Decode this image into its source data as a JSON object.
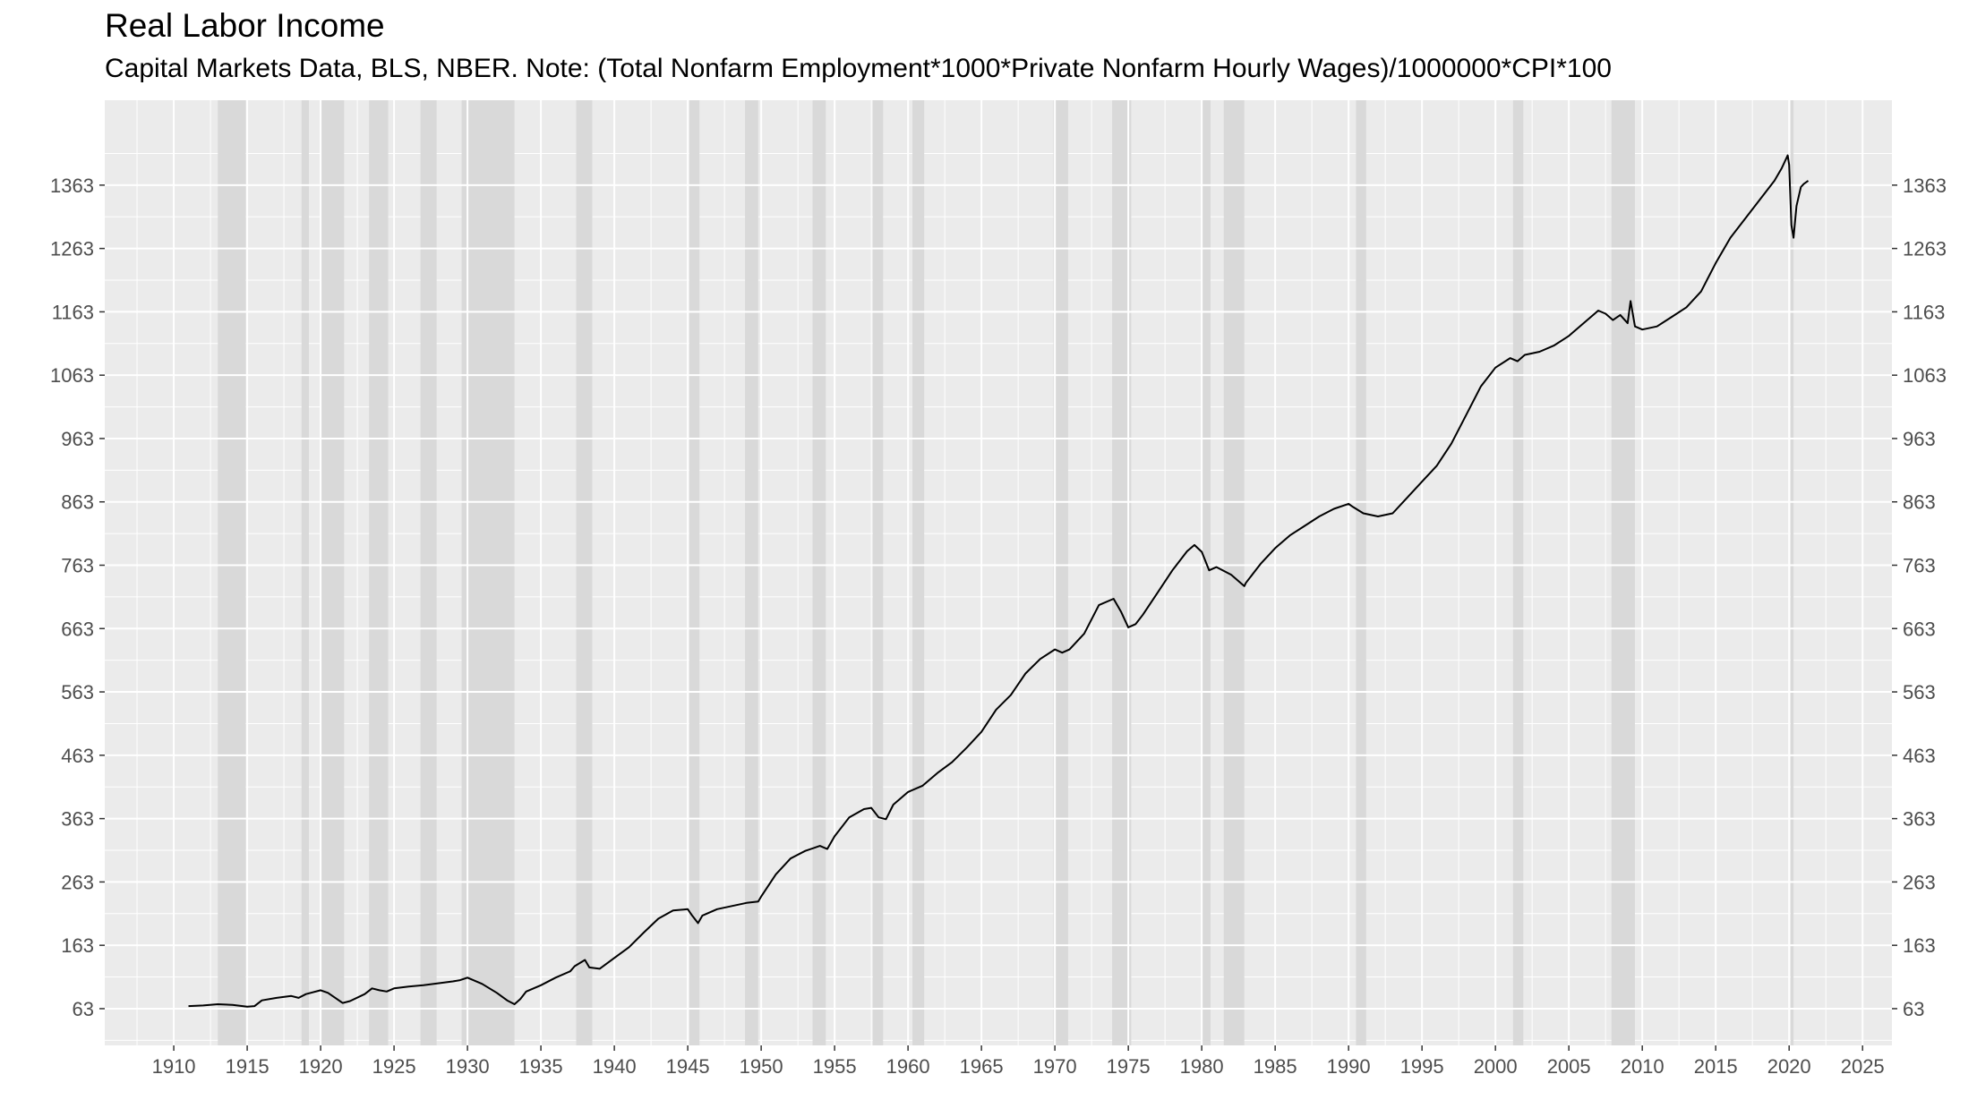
{
  "chart_data": {
    "type": "line",
    "title": "Real Labor Income",
    "subtitle": "Capital Markets Data, BLS, NBER. Note: (Total Nonfarm Employment*1000*Private Nonfarm Hourly Wages)/1000000*CPI*100",
    "xlabel": "",
    "ylabel": "",
    "xlim": [
      1905.3,
      2027.0
    ],
    "ylim": [
      5,
      1497
    ],
    "x_ticks": [
      "1910",
      "1915",
      "1920",
      "1925",
      "1930",
      "1935",
      "1940",
      "1945",
      "1950",
      "1955",
      "1960",
      "1965",
      "1970",
      "1975",
      "1980",
      "1985",
      "1990",
      "1995",
      "2000",
      "2005",
      "2010",
      "2015",
      "2020",
      "2025"
    ],
    "y_ticks": [
      "63",
      "163",
      "263",
      "363",
      "463",
      "563",
      "663",
      "763",
      "863",
      "963",
      "1063",
      "1163",
      "1263",
      "1363"
    ],
    "y_axis_both_sides": true,
    "grid": true,
    "legend": "none",
    "colors": {
      "panel": "#ebebeb",
      "gridline": "#ffffff",
      "recession": "#d9d9d9",
      "line": "#000000"
    },
    "recessions": [
      [
        1913.0,
        1914.9
      ],
      [
        1918.7,
        1919.2
      ],
      [
        1920.0,
        1921.6
      ],
      [
        1923.3,
        1924.6
      ],
      [
        1926.8,
        1927.9
      ],
      [
        1929.6,
        1933.2
      ],
      [
        1937.4,
        1938.5
      ],
      [
        1945.1,
        1945.8
      ],
      [
        1948.9,
        1949.8
      ],
      [
        1953.5,
        1954.4
      ],
      [
        1957.6,
        1958.3
      ],
      [
        1960.3,
        1961.1
      ],
      [
        1969.9,
        1970.9
      ],
      [
        1973.9,
        1975.2
      ],
      [
        1980.0,
        1980.6
      ],
      [
        1981.5,
        1982.9
      ],
      [
        1990.5,
        1991.2
      ],
      [
        2001.2,
        2001.9
      ],
      [
        2007.9,
        2009.5
      ],
      [
        2020.1,
        2020.3
      ]
    ],
    "series": [
      {
        "x": [
          1911.0,
          1912.0,
          1913.0,
          1914.0,
          1915.0,
          1915.5,
          1916.0,
          1917.0,
          1918.0,
          1918.5,
          1919.0,
          1920.0,
          1920.5,
          1921.0,
          1921.5,
          1922.0,
          1923.0,
          1923.5,
          1924.0,
          1924.5,
          1925.0,
          1926.0,
          1927.0,
          1928.0,
          1929.0,
          1929.5,
          1930.0,
          1931.0,
          1932.0,
          1932.7,
          1933.2,
          1933.6,
          1934.0,
          1935.0,
          1936.0,
          1937.0,
          1937.3,
          1938.0,
          1938.3,
          1939.0,
          1940.0,
          1941.0,
          1942.0,
          1943.0,
          1944.0,
          1945.0,
          1945.3,
          1945.7,
          1946.0,
          1947.0,
          1948.0,
          1949.0,
          1949.8,
          1950.0,
          1951.0,
          1952.0,
          1953.0,
          1953.5,
          1954.0,
          1954.5,
          1955.0,
          1956.0,
          1957.0,
          1957.5,
          1958.0,
          1958.5,
          1959.0,
          1960.0,
          1961.0,
          1962.0,
          1963.0,
          1964.0,
          1965.0,
          1966.0,
          1967.0,
          1968.0,
          1969.0,
          1970.0,
          1970.5,
          1971.0,
          1972.0,
          1973.0,
          1974.0,
          1974.5,
          1975.0,
          1975.5,
          1976.0,
          1977.0,
          1978.0,
          1979.0,
          1979.5,
          1980.0,
          1980.5,
          1981.0,
          1982.0,
          1982.9,
          1983.0,
          1984.0,
          1985.0,
          1986.0,
          1987.0,
          1988.0,
          1989.0,
          1990.0,
          1990.3,
          1991.0,
          1992.0,
          1993.0,
          1994.0,
          1995.0,
          1996.0,
          1997.0,
          1998.0,
          1999.0,
          2000.0,
          2001.0,
          2001.5,
          2002.0,
          2003.0,
          2004.0,
          2005.0,
          2006.0,
          2007.0,
          2007.5,
          2008.0,
          2008.5,
          2009.0,
          2009.2,
          2009.5,
          2010.0,
          2011.0,
          2012.0,
          2013.0,
          2014.0,
          2015.0,
          2016.0,
          2017.0,
          2018.0,
          2019.0,
          2019.5,
          2019.9,
          2020.0,
          2020.15,
          2020.3,
          2020.5,
          2020.8,
          2021.0,
          2021.3
        ],
        "y": [
          67,
          68,
          70,
          69,
          66,
          67,
          76,
          80,
          83,
          80,
          86,
          92,
          88,
          80,
          72,
          75,
          86,
          95,
          92,
          90,
          95,
          98,
          100,
          103,
          106,
          108,
          112,
          102,
          88,
          76,
          70,
          78,
          90,
          100,
          112,
          122,
          130,
          140,
          128,
          126,
          143,
          160,
          183,
          205,
          218,
          220,
          210,
          198,
          210,
          220,
          225,
          230,
          232,
          240,
          275,
          300,
          312,
          316,
          320,
          315,
          335,
          365,
          378,
          380,
          365,
          362,
          385,
          405,
          415,
          435,
          452,
          475,
          500,
          535,
          558,
          592,
          615,
          630,
          625,
          630,
          655,
          700,
          710,
          690,
          665,
          670,
          685,
          720,
          755,
          785,
          795,
          784,
          755,
          760,
          748,
          730,
          735,
          765,
          790,
          810,
          825,
          840,
          852,
          860,
          855,
          845,
          840,
          845,
          870,
          895,
          920,
          955,
          1000,
          1045,
          1075,
          1090,
          1085,
          1095,
          1100,
          1110,
          1125,
          1145,
          1165,
          1160,
          1150,
          1158,
          1145,
          1180,
          1140,
          1135,
          1140,
          1155,
          1170,
          1195,
          1240,
          1280,
          1310,
          1340,
          1370,
          1390,
          1410,
          1395,
          1300,
          1280,
          1330,
          1360,
          1365,
          1370
        ]
      }
    ]
  }
}
